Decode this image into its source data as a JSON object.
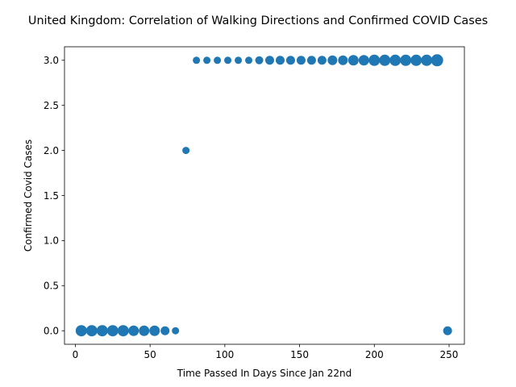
{
  "chart_data": {
    "type": "scatter",
    "title": "United Kingdom: Correlation of Walking Directions and Confirmed COVID Cases",
    "xlabel": "Time Passed In Days Since Jan 22nd",
    "ylabel": "Confirmed Covid Cases",
    "xlim": [
      -7.25,
      260.25
    ],
    "ylim": [
      -0.15,
      3.15
    ],
    "xticks": [
      0,
      50,
      100,
      150,
      200,
      250
    ],
    "xtick_labels": [
      "0",
      "50",
      "100",
      "150",
      "200",
      "250"
    ],
    "yticks": [
      0.0,
      0.5,
      1.0,
      1.5,
      2.0,
      2.5,
      3.0
    ],
    "ytick_labels": [
      "0.0",
      "0.5",
      "1.0",
      "1.5",
      "2.0",
      "2.5",
      "3.0"
    ],
    "grid": false,
    "color": "#1f77b4",
    "points": [
      {
        "x": 4,
        "y": 0,
        "s": 7.0
      },
      {
        "x": 11,
        "y": 0,
        "s": 7.0
      },
      {
        "x": 18,
        "y": 0,
        "s": 7.0
      },
      {
        "x": 25,
        "y": 0,
        "s": 7.0
      },
      {
        "x": 32,
        "y": 0,
        "s": 7.0
      },
      {
        "x": 39,
        "y": 0,
        "s": 6.5
      },
      {
        "x": 46,
        "y": 0,
        "s": 6.5
      },
      {
        "x": 53,
        "y": 0,
        "s": 6.5
      },
      {
        "x": 60,
        "y": 0,
        "s": 5.5
      },
      {
        "x": 67,
        "y": 0,
        "s": 4.5
      },
      {
        "x": 74,
        "y": 2,
        "s": 4.5
      },
      {
        "x": 81,
        "y": 3,
        "s": 4.5
      },
      {
        "x": 88,
        "y": 3,
        "s": 4.5
      },
      {
        "x": 95,
        "y": 3,
        "s": 4.5
      },
      {
        "x": 102,
        "y": 3,
        "s": 4.5
      },
      {
        "x": 109,
        "y": 3,
        "s": 4.5
      },
      {
        "x": 116,
        "y": 3,
        "s": 4.5
      },
      {
        "x": 123,
        "y": 3,
        "s": 5.0
      },
      {
        "x": 130,
        "y": 3,
        "s": 5.5
      },
      {
        "x": 137,
        "y": 3,
        "s": 5.5
      },
      {
        "x": 144,
        "y": 3,
        "s": 5.5
      },
      {
        "x": 151,
        "y": 3,
        "s": 5.5
      },
      {
        "x": 158,
        "y": 3,
        "s": 5.5
      },
      {
        "x": 165,
        "y": 3,
        "s": 5.5
      },
      {
        "x": 172,
        "y": 3,
        "s": 6.0
      },
      {
        "x": 179,
        "y": 3,
        "s": 6.0
      },
      {
        "x": 186,
        "y": 3,
        "s": 6.5
      },
      {
        "x": 193,
        "y": 3,
        "s": 6.5
      },
      {
        "x": 200,
        "y": 3,
        "s": 7.0
      },
      {
        "x": 207,
        "y": 3,
        "s": 7.0
      },
      {
        "x": 214,
        "y": 3,
        "s": 7.0
      },
      {
        "x": 221,
        "y": 3,
        "s": 7.0
      },
      {
        "x": 228,
        "y": 3,
        "s": 7.0
      },
      {
        "x": 235,
        "y": 3,
        "s": 7.0
      },
      {
        "x": 242,
        "y": 3,
        "s": 7.5
      },
      {
        "x": 249,
        "y": 0,
        "s": 5.5
      }
    ]
  }
}
